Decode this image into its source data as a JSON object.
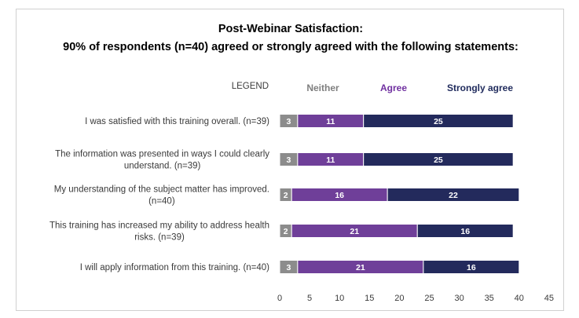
{
  "chart_data": {
    "type": "bar",
    "orientation": "horizontal",
    "stacked": true,
    "title": "Post-Webinar Satisfaction:",
    "subtitle": "90% of respondents (n=40) agreed or strongly agreed with the following statements:",
    "legend_heading": "LEGEND",
    "legend_placement": "top",
    "categories": [
      [
        "I was satisfied with this training overall. (n=39)"
      ],
      [
        "The information was presented in ways I could clearly",
        "understand. (n=39)"
      ],
      [
        "My understanding of the subject matter has improved.",
        "(n=40)"
      ],
      [
        "This training has increased my ability to address health",
        "risks. (n=39)"
      ],
      [
        "I will apply information from this training. (n=40)"
      ]
    ],
    "series": [
      {
        "name": "Neither",
        "color": "#8c8c8c",
        "values": [
          3,
          3,
          2,
          2,
          3
        ]
      },
      {
        "name": "Agree",
        "color": "#6f3f99",
        "values": [
          11,
          11,
          16,
          21,
          21
        ]
      },
      {
        "name": "Strongly agree",
        "color": "#232a5c",
        "values": [
          25,
          25,
          22,
          16,
          16
        ]
      }
    ],
    "legend_colors": [
      "#8c8c8c",
      "#6f3f99",
      "#232a5c"
    ],
    "xlim": [
      0,
      45
    ],
    "xticks": [
      0,
      5,
      10,
      15,
      20,
      25,
      30,
      35,
      40,
      45
    ],
    "grid": false
  }
}
